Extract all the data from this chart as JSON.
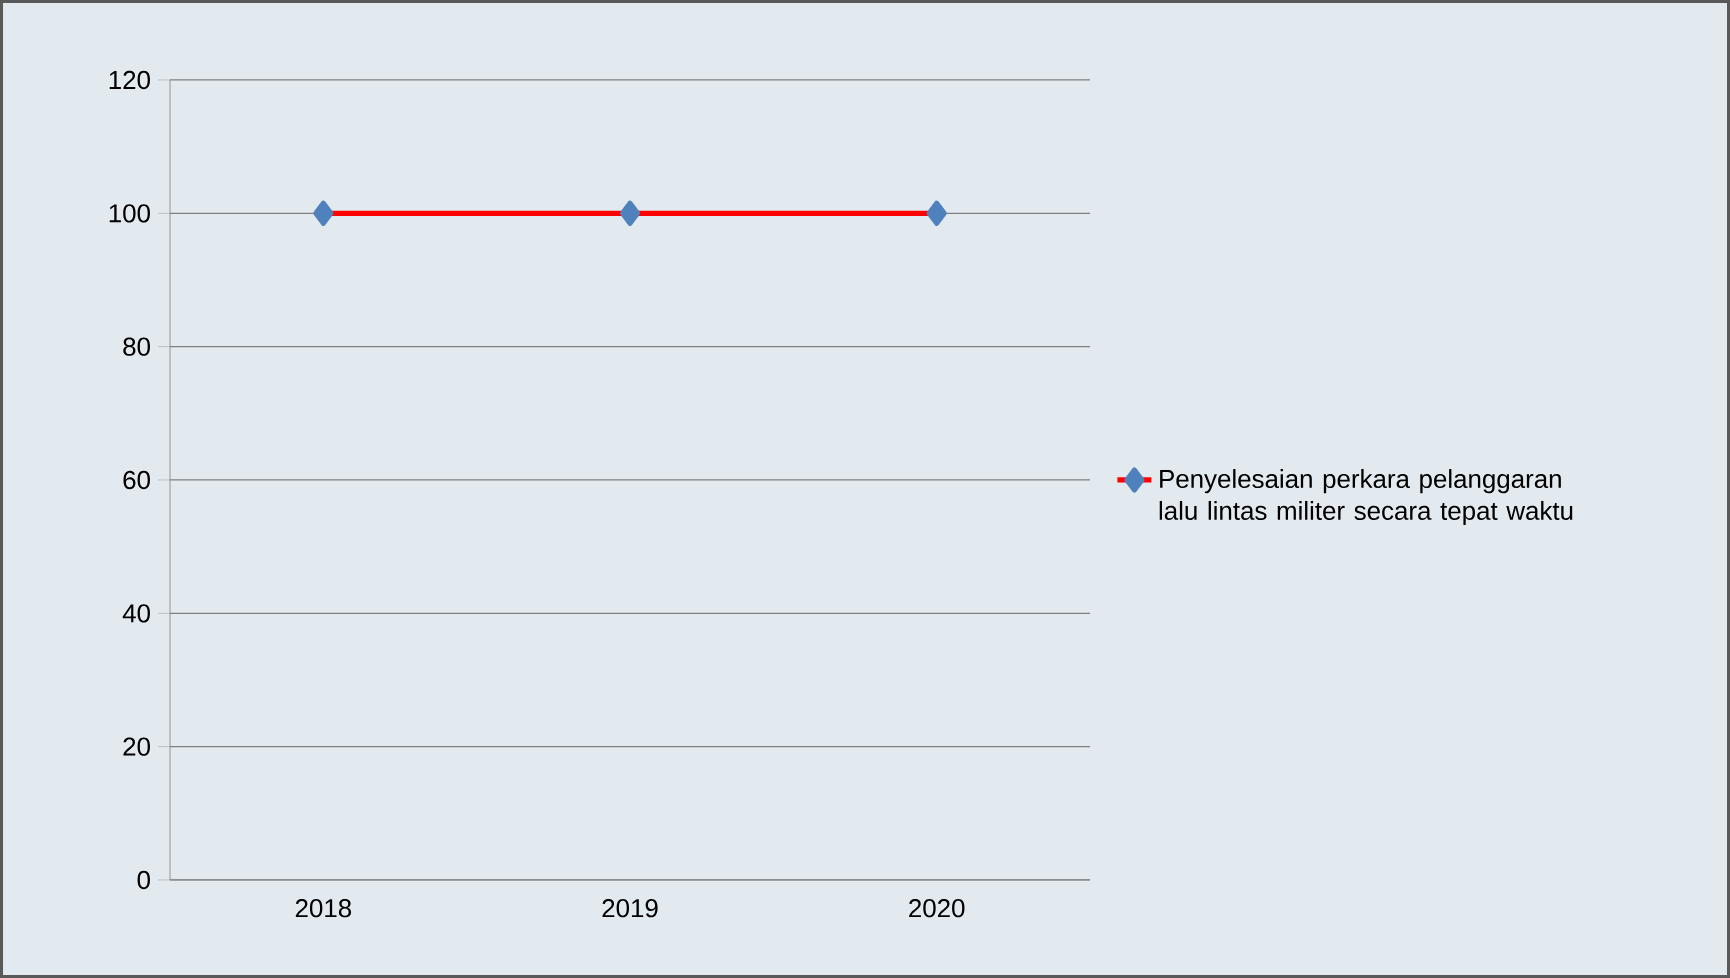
{
  "chart_data": {
    "type": "line",
    "categories": [
      "2018",
      "2019",
      "2020"
    ],
    "series": [
      {
        "name": "Penyelesaian perkara pelanggaran lalu lintas militer secara tepat waktu",
        "color": "#ff0000",
        "values": [
          100,
          100,
          100
        ]
      }
    ],
    "ylim": [
      0,
      120
    ],
    "yticks": [
      0,
      20,
      40,
      60,
      80,
      100,
      120
    ],
    "grid": "y",
    "legend": "right",
    "marker": "diamond",
    "line_style": "solid"
  }
}
